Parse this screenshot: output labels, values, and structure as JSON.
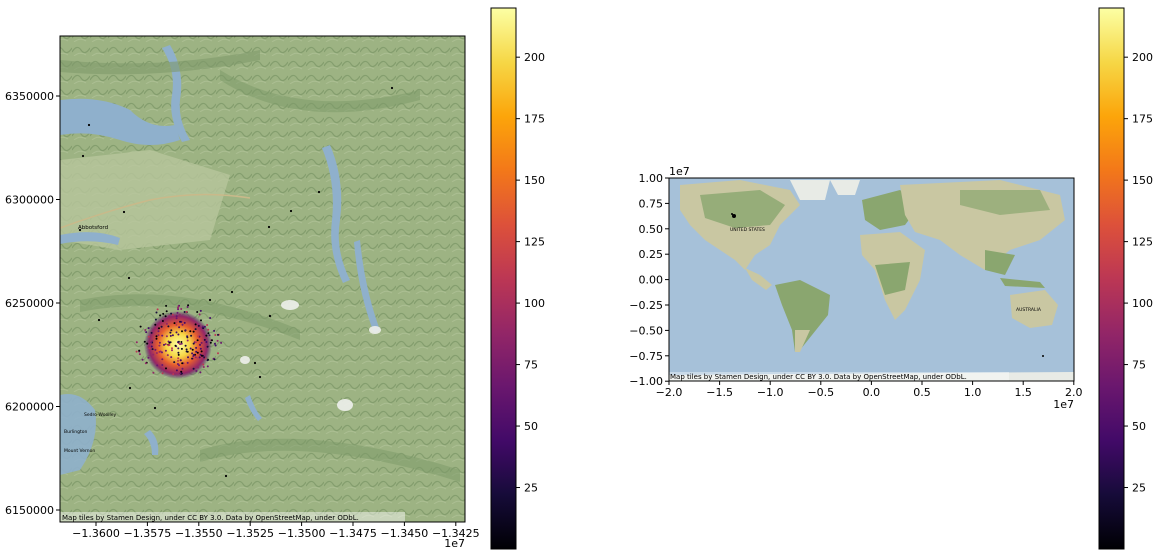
{
  "left_panel": {
    "x_ticks": [
      "−1.3600",
      "−1.3575",
      "−1.3550",
      "−1.3525",
      "−1.3500",
      "−1.3475",
      "−1.3450",
      "−1.3425"
    ],
    "y_ticks": [
      "6350000",
      "6300000",
      "6250000",
      "6200000",
      "6150000"
    ],
    "x_offset": "1e7",
    "attribution": "Map tiles by Stamen Design, under CC BY 3.0. Data by OpenStreetMap, under ODbL.",
    "place_labels": [
      "Abbotsford",
      "Sedro-Woolley",
      "Burlington",
      "Mount Vernon"
    ],
    "colorbar": {
      "ticks": [
        "25",
        "50",
        "75",
        "100",
        "125",
        "150",
        "175",
        "200"
      ],
      "min": 0,
      "max": 220,
      "colormap": "inferno"
    }
  },
  "right_panel": {
    "x_ticks": [
      "−2.0",
      "−1.5",
      "−1.0",
      "−0.5",
      "0.0",
      "0.5",
      "1.0",
      "1.5",
      "2.0"
    ],
    "y_ticks": [
      "1.00",
      "0.75",
      "0.50",
      "0.25",
      "0.00",
      "−0.25",
      "−0.50",
      "−0.75",
      "−1.00"
    ],
    "x_offset": "1e7",
    "y_offset": "1e7",
    "attribution": "Map tiles by Stamen Design, under CC BY 3.0. Data by OpenStreetMap, under ODbL.",
    "place_labels": [
      "UNITED STATES",
      "AUSTRALIA"
    ],
    "colorbar": {
      "ticks": [
        "25",
        "50",
        "75",
        "100",
        "125",
        "150",
        "175",
        "200"
      ],
      "min": 0,
      "max": 220,
      "colormap": "inferno"
    }
  },
  "colors": {
    "terrain": "#9db383",
    "terrain_dark": "#7e9a6a",
    "water": "#8fb0cc",
    "ocean": "#a6c1d9",
    "land": "#c9c7a2",
    "forest": "#8aa66f"
  }
}
